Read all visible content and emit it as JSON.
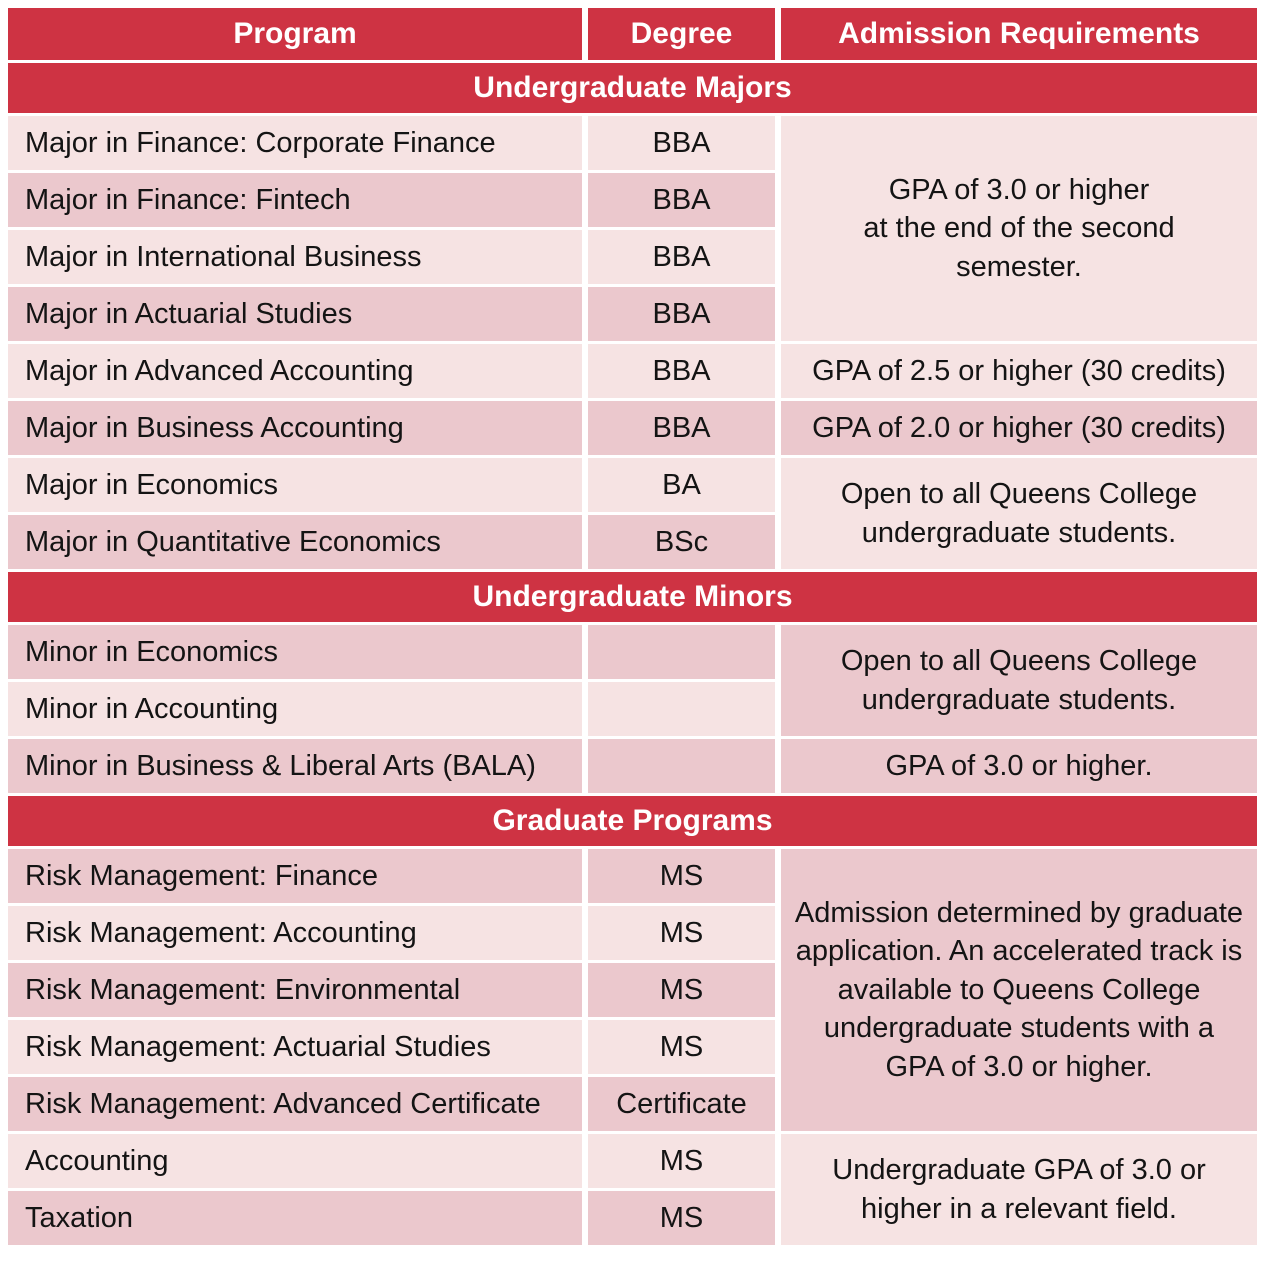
{
  "palette": {
    "header_red": "#CE3343",
    "row_light_pink": "#F6E3E3",
    "row_dark_pink": "#EBC8CD",
    "header_text": "#FFFFFF",
    "body_text": "#141414"
  },
  "table": {
    "columns": {
      "program": "Program",
      "degree": "Degree",
      "requirements": "Admission Requirements"
    },
    "sections": [
      {
        "title": "Undergraduate Majors",
        "rows": [
          {
            "program": "Major in Finance: Corporate Finance",
            "degree": "BBA"
          },
          {
            "program": "Major in Finance: Fintech",
            "degree": "BBA"
          },
          {
            "program": "Major in International Business",
            "degree": "BBA"
          },
          {
            "program": "Major in Actuarial Studies",
            "degree": "BBA"
          },
          {
            "program": "Major in Advanced Accounting",
            "degree": "BBA",
            "requirement": "GPA of 2.5 or higher (30 credits)"
          },
          {
            "program": "Major in Business Accounting",
            "degree": "BBA",
            "requirement": "GPA of 2.0 or higher (30 credits)"
          },
          {
            "program": "Major in Economics",
            "degree": "BA"
          },
          {
            "program": "Major in Quantitative Economics",
            "degree": "BSc"
          }
        ],
        "merged_requirements": [
          {
            "rows": "1-4",
            "text": "GPA of 3.0 or higher\nat the end of the second\nsemester."
          },
          {
            "rows": "7-8",
            "text": "Open to all Queens College\nundergraduate students."
          }
        ]
      },
      {
        "title": "Undergraduate Minors",
        "rows": [
          {
            "program": "Minor in Economics",
            "degree": ""
          },
          {
            "program": "Minor in Accounting",
            "degree": ""
          },
          {
            "program": "Minor in Business & Liberal Arts (BALA)",
            "degree": "",
            "requirement": "GPA of 3.0 or higher."
          }
        ],
        "merged_requirements": [
          {
            "rows": "1-2",
            "text": "Open to all Queens College\nundergraduate students."
          }
        ]
      },
      {
        "title": "Graduate Programs",
        "rows": [
          {
            "program": "Risk Management: Finance",
            "degree": "MS"
          },
          {
            "program": "Risk Management: Accounting",
            "degree": "MS"
          },
          {
            "program": "Risk Management: Environmental",
            "degree": "MS"
          },
          {
            "program": "Risk Management: Actuarial Studies",
            "degree": "MS"
          },
          {
            "program": "Risk Management: Advanced Certificate",
            "degree": "Certificate"
          },
          {
            "program": "Accounting",
            "degree": "MS"
          },
          {
            "program": "Taxation",
            "degree": "MS"
          }
        ],
        "merged_requirements": [
          {
            "rows": "1-5",
            "text": "Admission determined by graduate\napplication. An accelerated track is\navailable to Queens College\nundergraduate students with a\nGPA of 3.0 or higher."
          },
          {
            "rows": "6-7",
            "text": "Undergraduate GPA of 3.0 or\nhigher in a relevant field."
          }
        ]
      }
    ]
  }
}
